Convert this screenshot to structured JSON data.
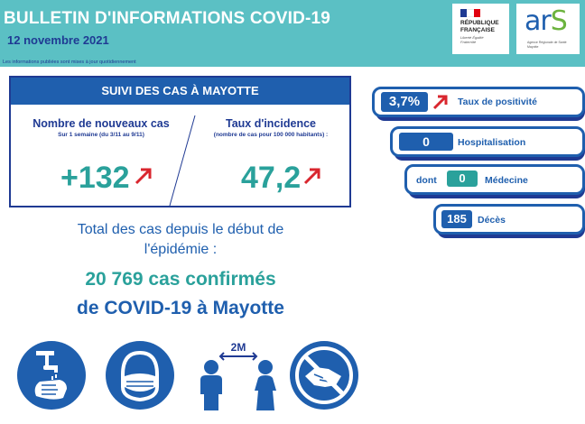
{
  "header": {
    "title": "BULLETIN D'INFORMATIONS COVID-19",
    "date": "12 novembre 2021",
    "note": "Les informations publiées sont mises à jour quotidiennement"
  },
  "logos": {
    "rf_line1": "RÉPUBLIQUE",
    "rf_line2": "FRANÇAISE",
    "rf_motto": "Liberté Égalité Fraternité",
    "ars_main": "ar",
    "ars_s": "S",
    "ars_sub": "Agence Régionale de Santé Mayotte"
  },
  "suivi": {
    "heading": "SUIVI DES CAS À MAYOTTE",
    "nouveaux_title": "Nombre de nouveaux cas",
    "nouveaux_sub": "Sur 1 semaine (du 3/11 au 9/11)",
    "nouveaux_value": "+132",
    "incidence_title": "Taux d'incidence",
    "incidence_sub": "(nombre de cas pour 100 000 habitants) :",
    "incidence_value": "47,2"
  },
  "totals": {
    "line1": "Total des cas depuis le début de",
    "line2": "l'épidémie :",
    "line3": "20 769 cas confirmés",
    "line4": "de COVID-19 à Mayotte"
  },
  "indicators": {
    "positivite_value": "3,7%",
    "positivite_label": "Taux de positivité",
    "hospitalisation_value": "0",
    "hospitalisation_label": "Hospitalisation",
    "medecine_prefix": "dont",
    "medecine_value": "0",
    "medecine_label": "Médecine",
    "deces_value": "185",
    "deces_label": "Décès"
  },
  "icons": {
    "distance_label": "2M"
  },
  "colors": {
    "teal": "#5bc0c4",
    "navy": "#1f3a93",
    "blue": "#1f5fae",
    "green_value": "#2aa19b",
    "arrow_red": "#d9262e"
  }
}
